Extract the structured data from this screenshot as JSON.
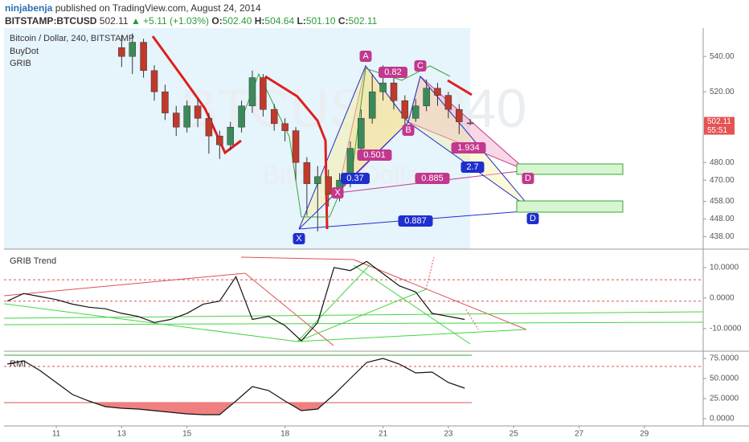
{
  "header": {
    "author": "ninjabenja",
    "published": "published on TradingView.com, August 24, 2014",
    "symbol": "BITSTAMP:BTCUSD",
    "price": "502.11",
    "arrow": "▲",
    "change": "+5.11 (+1.03%)",
    "o_label": "O:",
    "o": "502.40",
    "h_label": "H:",
    "h": "504.64",
    "l_label": "L:",
    "l": "501.10",
    "c_label": "C:",
    "c": "502.11"
  },
  "chart_data": [
    {
      "type": "candlestick",
      "title": "Bitcoin / Dollar, 240, BITSTAMP",
      "studies": [
        "BuyDot",
        "GRIB"
      ],
      "watermark": "BTCUSD, 240",
      "watermark_sub": "Bitcoin / Dollar",
      "x": [
        13.0,
        13.33,
        13.67,
        14.0,
        14.33,
        14.67,
        15.0,
        15.33,
        15.67,
        16.0,
        16.33,
        16.67,
        17.0,
        17.33,
        17.67,
        18.0,
        18.33,
        18.67,
        19.0,
        19.33,
        19.67,
        20.0,
        20.33,
        20.67,
        21.0,
        21.33,
        21.67,
        22.0,
        22.33,
        22.67,
        23.0,
        23.33,
        23.67
      ],
      "open": [
        545,
        540,
        548,
        532,
        520,
        508,
        500,
        512,
        505,
        495,
        490,
        500,
        512,
        528,
        510,
        502,
        498,
        480,
        468,
        472,
        462,
        470,
        488,
        505,
        520,
        525,
        515,
        505,
        512,
        522,
        518,
        510,
        502.4
      ],
      "high": [
        552,
        553,
        550,
        535,
        524,
        512,
        515,
        516,
        508,
        498,
        503,
        515,
        532,
        530,
        513,
        505,
        500,
        483,
        478,
        476,
        474,
        492,
        510,
        530,
        535,
        528,
        518,
        516,
        527,
        525,
        520,
        513,
        504.64
      ],
      "low": [
        534,
        530,
        528,
        515,
        504,
        495,
        497,
        500,
        485,
        482,
        487,
        497,
        508,
        506,
        498,
        492,
        470,
        450,
        441,
        455,
        458,
        466,
        485,
        502,
        515,
        510,
        500,
        503,
        509,
        512,
        505,
        496,
        501.1
      ],
      "close": [
        540,
        548,
        532,
        520,
        508,
        500,
        512,
        505,
        495,
        490,
        500,
        512,
        528,
        510,
        502,
        498,
        480,
        468,
        472,
        462,
        470,
        488,
        505,
        520,
        525,
        515,
        505,
        512,
        522,
        518,
        510,
        503,
        502.11
      ],
      "up_color": "#3c8a5a",
      "down_color": "#c0392b",
      "last_label": "502.11",
      "countdown": "55:51",
      "xlim": [
        9.4,
        30.8
      ],
      "xticks": [
        11,
        13,
        15,
        18,
        21,
        23,
        25,
        27,
        29
      ],
      "ylim": [
        431,
        556
      ],
      "yticks": [
        {
          "value": 540,
          "label": "540.00"
        },
        {
          "value": 520,
          "label": "520.00"
        },
        {
          "value": 480,
          "label": "480.00"
        },
        {
          "value": 470,
          "label": "470.00"
        },
        {
          "value": 458,
          "label": "458.00"
        },
        {
          "value": 448,
          "label": "448.00"
        },
        {
          "value": 438,
          "label": "438.00"
        }
      ],
      "annotations": [
        {
          "text": "A",
          "color": "#c2388f"
        },
        {
          "text": "0.82",
          "color": "#c2388f"
        },
        {
          "text": "C",
          "color": "#c2388f"
        },
        {
          "text": "B",
          "color": "#c2388f"
        },
        {
          "text": "0.501",
          "color": "#c2388f"
        },
        {
          "text": "1.934",
          "color": "#c2388f"
        },
        {
          "text": "X",
          "color": "#c2388f"
        },
        {
          "text": "0.885",
          "color": "#c2388f"
        },
        {
          "text": "D",
          "color": "#c2388f"
        },
        {
          "text": "0.37",
          "color": "#1f2fcf"
        },
        {
          "text": "2.7",
          "color": "#1f2fcf"
        },
        {
          "text": "0.887",
          "color": "#1f2fcf"
        },
        {
          "text": "X",
          "color": "#1f2fcf"
        },
        {
          "text": "D",
          "color": "#1f2fcf"
        }
      ]
    },
    {
      "type": "line",
      "title": "GRIB Trend",
      "color": "#111111",
      "x": [
        9.5,
        10,
        10.5,
        11,
        11.5,
        12,
        12.5,
        13,
        13.5,
        14,
        14.5,
        15,
        15.5,
        16,
        16.5,
        17,
        17.5,
        18,
        18.5,
        19,
        19.5,
        20,
        20.5,
        21,
        21.5,
        22,
        22.5,
        23,
        23.5
      ],
      "values": [
        -1,
        1.5,
        0.5,
        -0.5,
        -2,
        -3,
        -3.5,
        -5,
        -6,
        -8,
        -7,
        -5,
        -2,
        -1,
        7,
        -7,
        -6,
        -9,
        -14,
        -8,
        10,
        9,
        12,
        8,
        4,
        2,
        -5,
        -6,
        -7
      ],
      "levels": [
        {
          "value": 6,
          "color": "#e05050",
          "dashed": true
        },
        {
          "value": -1,
          "color": "#e05050",
          "dashed": true
        }
      ],
      "ylim": [
        -17.4,
        15.5
      ],
      "yticks": [
        {
          "value": 10,
          "label": "10.0000"
        },
        {
          "value": 0,
          "label": "0.0000"
        },
        {
          "value": -10,
          "label": "-10.0000"
        }
      ]
    },
    {
      "type": "line",
      "title": "RMI",
      "color": "#111111",
      "fill_color": "#f08080",
      "x": [
        9.5,
        10,
        10.5,
        11,
        11.5,
        12,
        12.5,
        13,
        13.5,
        14,
        14.5,
        15,
        15.5,
        16,
        16.5,
        17,
        17.5,
        18,
        18.5,
        19,
        19.5,
        20,
        20.5,
        21,
        21.5,
        22,
        22.5,
        23,
        23.5
      ],
      "values": [
        68,
        72,
        60,
        45,
        30,
        22,
        15,
        13,
        12,
        10,
        8,
        6,
        5,
        5,
        22,
        40,
        35,
        22,
        10,
        12,
        30,
        50,
        70,
        75,
        68,
        57,
        58,
        45,
        38
      ],
      "levels": [
        {
          "value": 79,
          "color": "#3aa63a",
          "dashed": false
        },
        {
          "value": 65,
          "color": "#e05050",
          "dashed": true
        },
        {
          "value": 20,
          "color": "#e05050",
          "dashed": false
        }
      ],
      "ylim": [
        -9,
        81
      ],
      "yticks": [
        {
          "value": 75,
          "label": "75.0000"
        },
        {
          "value": 50,
          "label": "50.0000"
        },
        {
          "value": 25,
          "label": "25.0000"
        },
        {
          "value": 0,
          "label": "0.0000"
        }
      ]
    }
  ]
}
